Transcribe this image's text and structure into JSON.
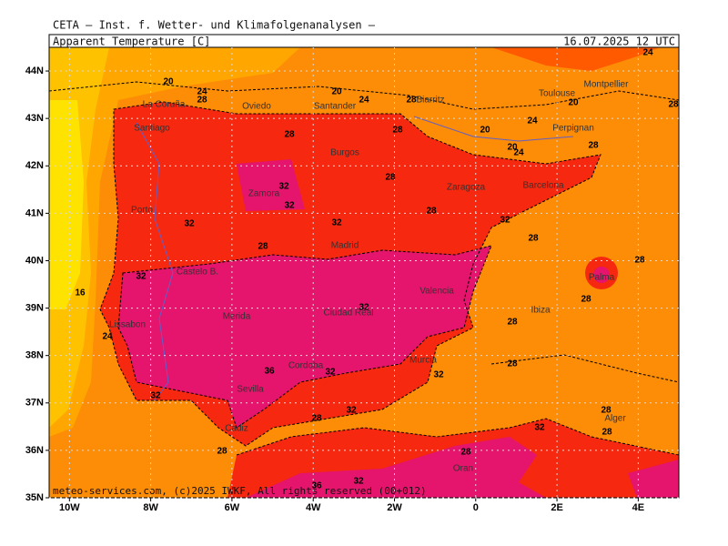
{
  "header": {
    "title": "CETA — Inst. f. Wetter- und Klimafolgenanalysen —",
    "parameter": "Apparent_Temperature [C]",
    "valid_time": "16.07.2025 12 UTC"
  },
  "map": {
    "xlim": [
      -10.5,
      5
    ],
    "ylim": [
      35,
      44.5
    ],
    "xticks": [
      {
        "value": -10,
        "label": "10W"
      },
      {
        "value": -8,
        "label": "8W"
      },
      {
        "value": -6,
        "label": "6W"
      },
      {
        "value": -4,
        "label": "4W"
      },
      {
        "value": -2,
        "label": "2W"
      },
      0,
      {
        "value": 2,
        "label": "2E"
      },
      {
        "value": 4,
        "label": "4E"
      }
    ],
    "yticks": [
      {
        "value": 35,
        "label": "35N"
      },
      {
        "value": 36,
        "label": "36N"
      },
      {
        "value": 37,
        "label": "37N"
      },
      {
        "value": 38,
        "label": "38N"
      },
      {
        "value": 39,
        "label": "39N"
      },
      {
        "value": 40,
        "label": "40N"
      },
      {
        "value": 41,
        "label": "41N"
      },
      {
        "value": 42,
        "label": "42N"
      },
      {
        "value": 43,
        "label": "43N"
      },
      {
        "value": 44,
        "label": "44N"
      }
    ],
    "cities": [
      "La Coruña",
      "Oviedo",
      "Santander",
      "Biarritz",
      "Toulouse",
      "Montpellier",
      "Santiago",
      "Perpignan",
      "Burgos",
      "Zaragoza",
      "Barcelona",
      "Zamora",
      "Porto",
      "Madrid",
      "Castelo B.",
      "Palma",
      "Valencia",
      "Merida",
      "Ciudad Real",
      "Ibiza",
      "Lissabon",
      "Murcia",
      "Cordoba",
      "Sevilla",
      "Alger",
      "Cadiz",
      "Oran"
    ],
    "contour_labels": [
      20,
      24,
      28,
      20,
      24,
      28,
      28,
      28,
      20,
      20,
      24,
      24,
      20,
      28,
      24,
      28,
      28,
      32,
      32,
      32,
      32,
      28,
      32,
      28,
      28,
      32,
      28,
      16,
      32,
      28,
      28,
      24,
      36,
      32,
      32,
      28,
      32,
      28,
      32,
      28,
      32,
      28,
      28,
      28,
      36,
      32
    ]
  },
  "footer": "meteo-services.com, (c)2025 IWKF, All rights reserved (00+012)"
}
